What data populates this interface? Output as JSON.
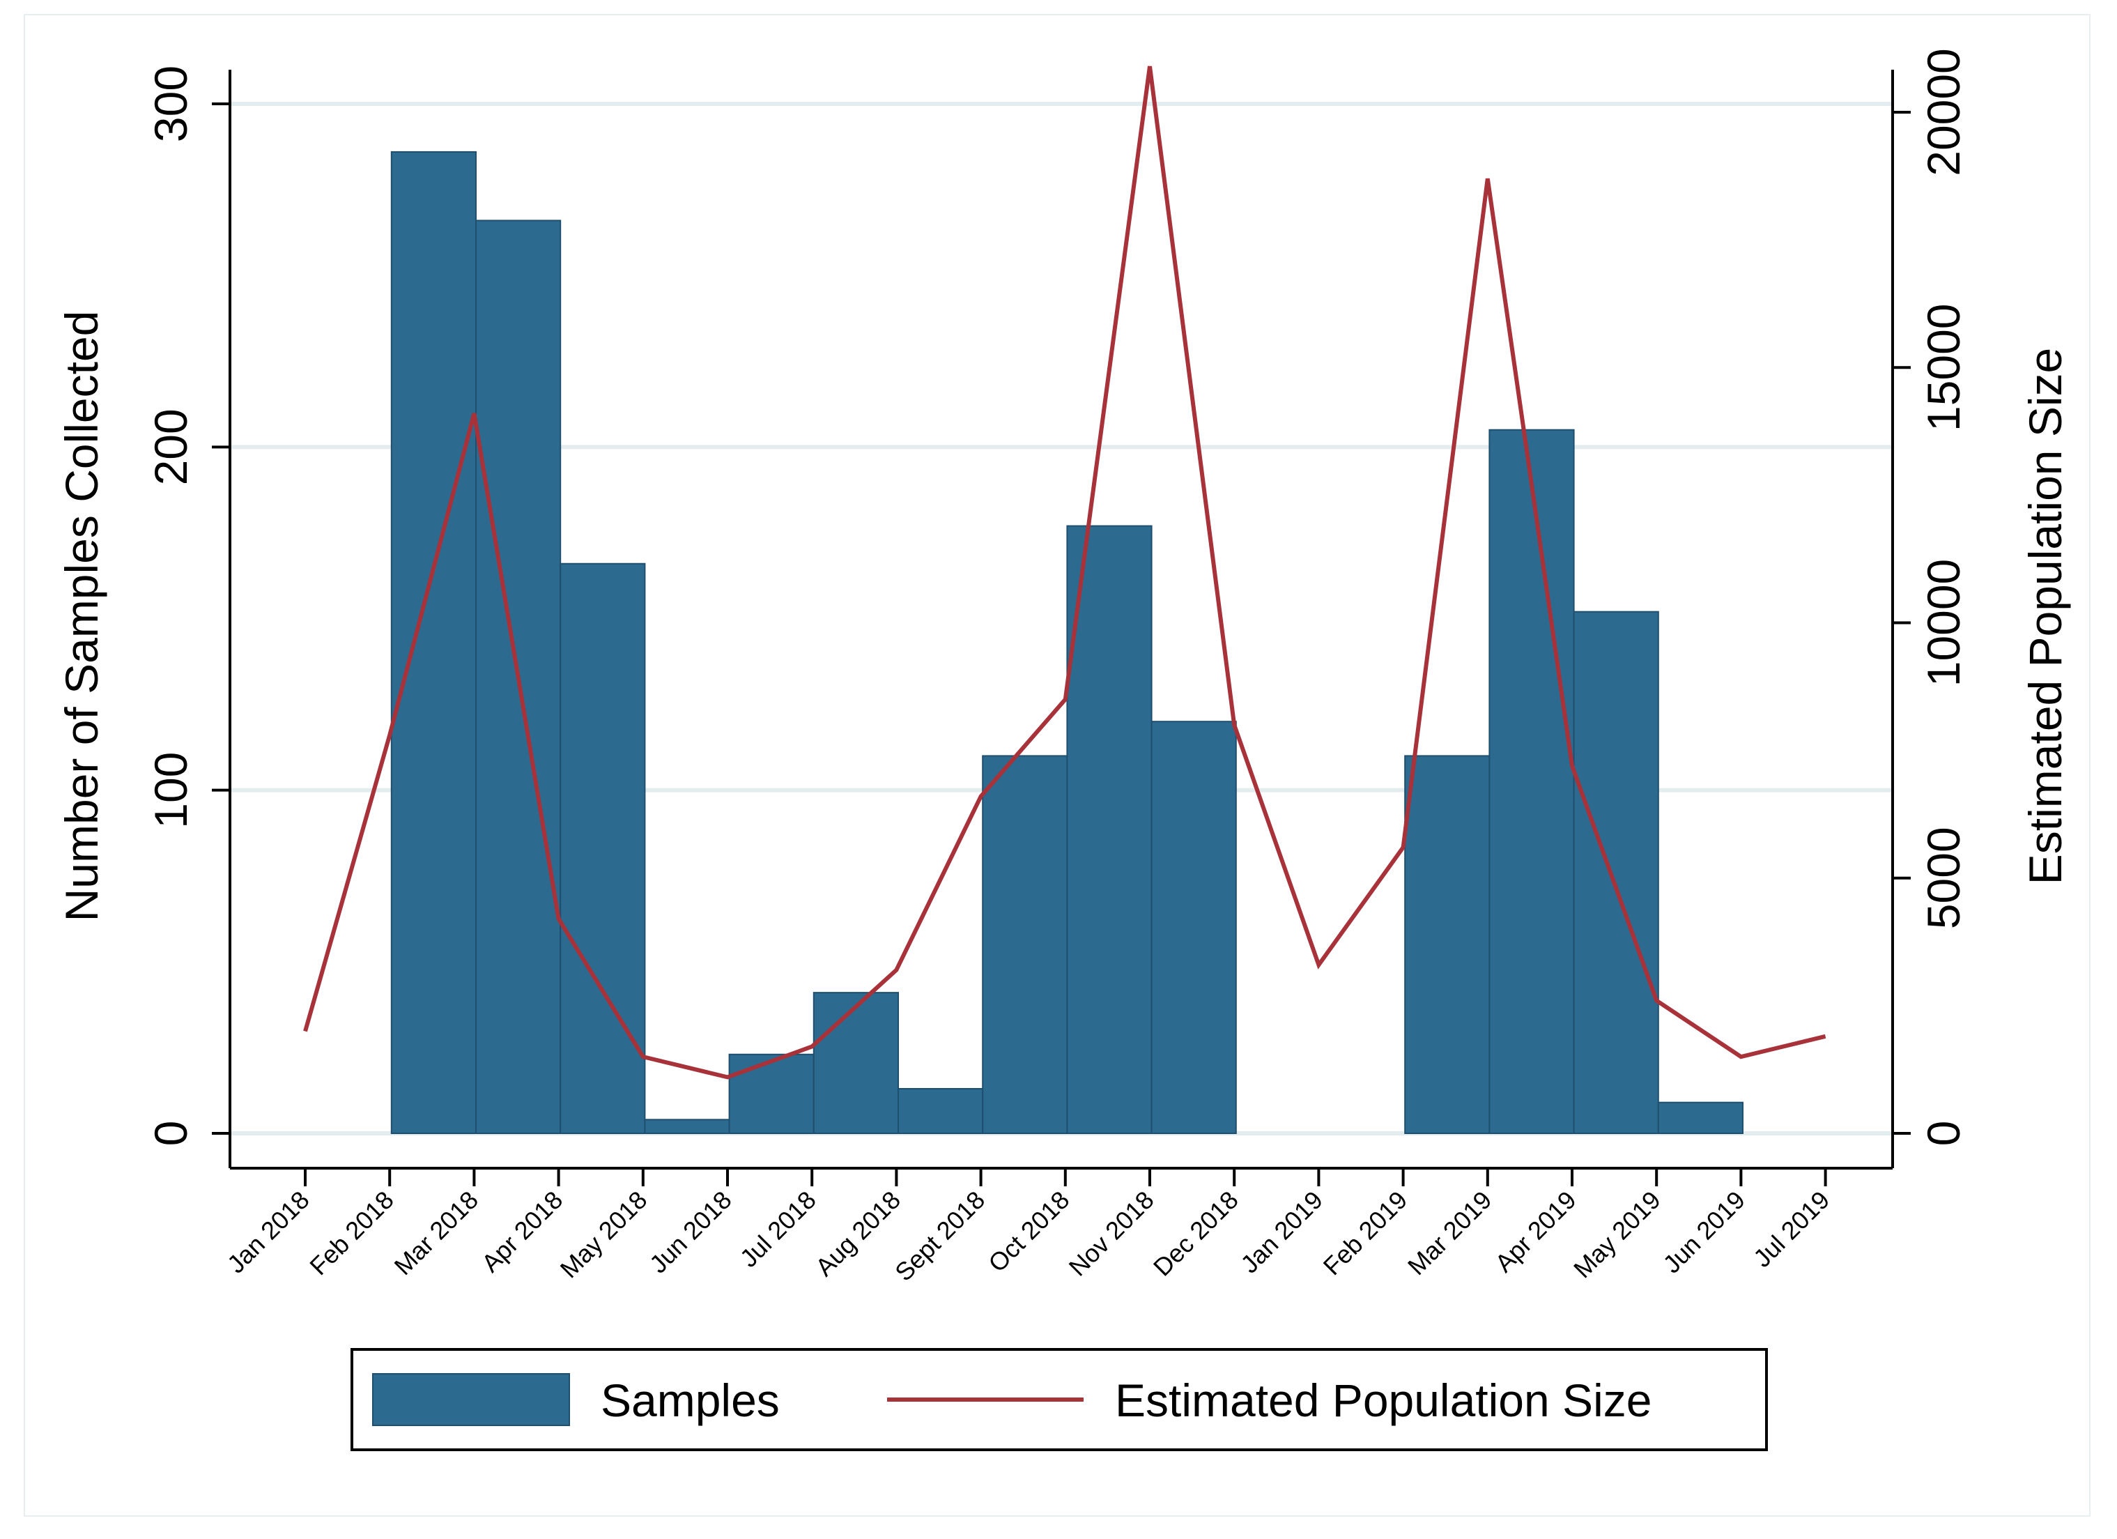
{
  "chart_data": {
    "type": "bar+line",
    "categories": [
      "Jan 2018",
      "Feb 2018",
      "Mar 2018",
      "Apr 2018",
      "May 2018",
      "Jun 2018",
      "Jul 2018",
      "Aug 2018",
      "Sept 2018",
      "Oct 2018",
      "Nov 2018",
      "Dec 2018",
      "Jan 2019",
      "Feb 2019",
      "Mar 2019",
      "Apr 2019",
      "May 2019",
      "Jun 2019",
      "Jul 2019"
    ],
    "series": [
      {
        "name": "Samples",
        "type": "bar",
        "axis": "left",
        "color": "#2d6a8f",
        "values": [
          null,
          null,
          286,
          266,
          166,
          4,
          23,
          41,
          13,
          110,
          177,
          120,
          null,
          null,
          110,
          205,
          152,
          9,
          null
        ]
      },
      {
        "name": "Estimated Population Size",
        "type": "line",
        "axis": "right",
        "color": "#a8323a",
        "values": [
          2000,
          7800,
          14100,
          4200,
          1500,
          1100,
          1700,
          3200,
          6600,
          8500,
          20900,
          8000,
          3300,
          5600,
          18700,
          7200,
          2600,
          1500,
          1900
        ]
      }
    ],
    "ylabel": "Number of Samples Collected",
    "ylabel_right": "Estimated Population Size",
    "ylim": [
      0,
      300
    ],
    "ylim_right": [
      0,
      20000
    ],
    "yticks": [
      "0",
      "100",
      "200",
      "300"
    ],
    "yticks_right": [
      "0",
      "5000",
      "10000",
      "15000",
      "20000"
    ],
    "legend": {
      "position": "bottom",
      "entries": [
        "Samples",
        "Estimated Population Size"
      ]
    },
    "grid": "horizontal"
  }
}
